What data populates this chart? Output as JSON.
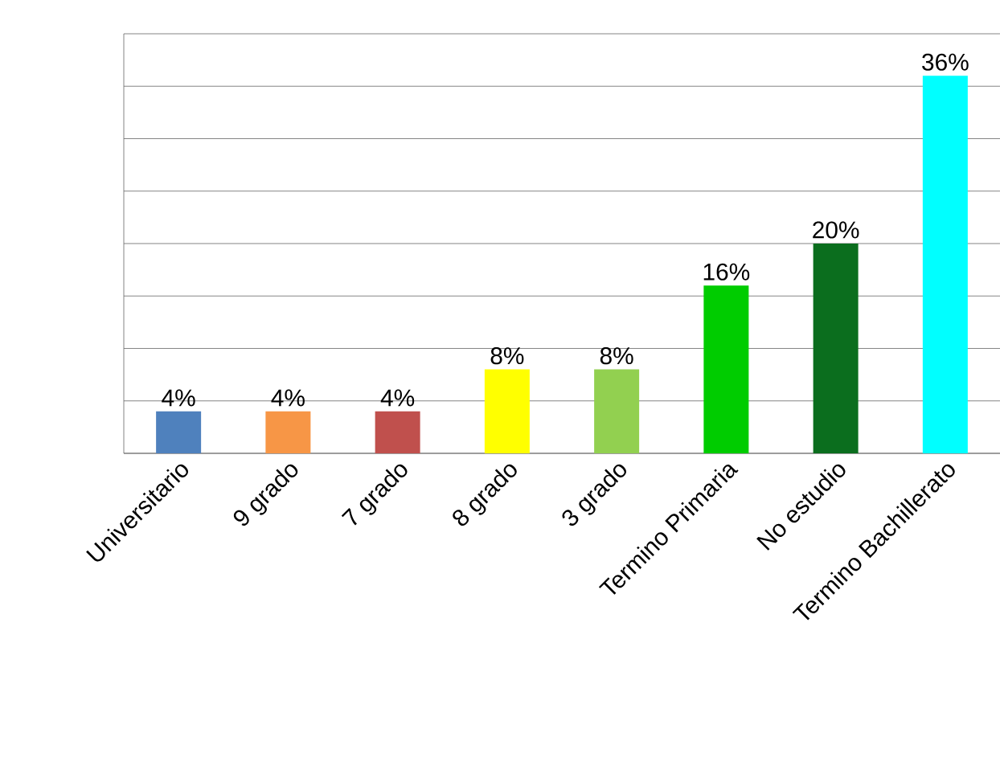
{
  "chart_data": {
    "type": "bar",
    "categories": [
      "Universitario",
      "9 grado",
      "7 grado",
      "8 grado",
      "3 grado",
      "Termino Primaria",
      "No estudio",
      "Termino Bachillerato"
    ],
    "values": [
      4,
      4,
      4,
      8,
      8,
      16,
      20,
      36
    ],
    "value_labels": [
      "4%",
      "4%",
      "4%",
      "8%",
      "8%",
      "16%",
      "20%",
      "36%"
    ],
    "colors": [
      "#4f81bd",
      "#f79646",
      "#c0504d",
      "#ffff00",
      "#92d050",
      "#00cc00",
      "#0b6e1e",
      "#00ffff"
    ],
    "ylim": [
      0,
      40
    ],
    "yticks": [
      {
        "value": 0,
        "label": null
      },
      {
        "value": 5,
        "label": null
      },
      {
        "value": 10,
        "label": null
      },
      {
        "value": 15,
        "label": null
      },
      {
        "value": 20,
        "label": null
      },
      {
        "value": 25,
        "label": null
      },
      {
        "value": 30,
        "label": null
      },
      {
        "value": 35,
        "label": null
      },
      {
        "value": 40,
        "label": null
      }
    ],
    "grid": "y",
    "tick_labels": "x"
  }
}
